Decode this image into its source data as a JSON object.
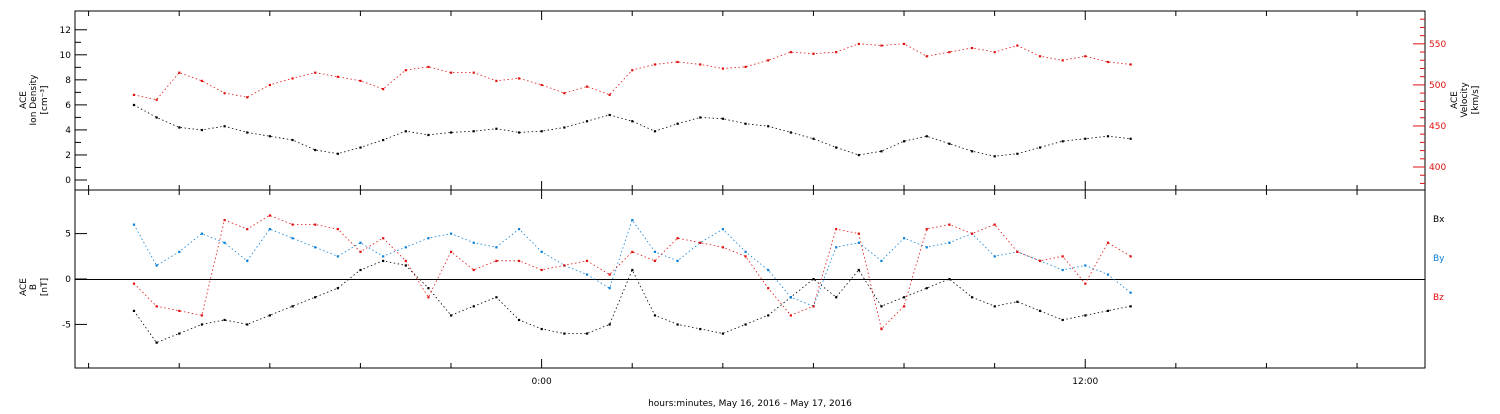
{
  "chart_data": [
    {
      "type": "scatter",
      "ylabel_left": [
        "ACE",
        "Ion Density",
        "[cm⁻³]"
      ],
      "ylabel_right": [
        "ACE",
        "Velocity",
        "[km/s]"
      ],
      "y_left_ticks": [
        "0",
        "2",
        "4",
        "6",
        "8",
        "10",
        "12"
      ],
      "y_right_ticks": [
        "400",
        "450",
        "500",
        "550"
      ],
      "ylim_left": [
        -0.8,
        13.5
      ],
      "ylim_right": [
        372,
        590
      ],
      "series": [
        {
          "name": "",
          "axis": "left",
          "color": "#000000",
          "x": [
            -9.0,
            -8.5,
            -8.0,
            -7.5,
            -7.0,
            -6.5,
            -6.0,
            -5.5,
            -5.0,
            -4.5,
            -4.0,
            -3.5,
            -3.0,
            -2.5,
            -2.0,
            -1.5,
            -1.0,
            -0.5,
            0.0,
            0.5,
            1.0,
            1.5,
            2.0,
            2.5,
            3.0,
            3.5,
            4.0,
            4.5,
            5.0,
            5.5,
            6.0,
            6.5,
            7.0,
            7.5,
            8.0,
            8.5,
            9.0,
            9.5,
            10.0,
            10.5,
            11.0,
            11.5,
            12.0,
            12.5,
            13.0
          ],
          "y": [
            6.0,
            5.0,
            4.2,
            4.0,
            4.3,
            3.8,
            3.5,
            3.2,
            2.4,
            2.1,
            2.6,
            3.2,
            3.9,
            3.6,
            3.8,
            3.9,
            4.1,
            3.8,
            3.9,
            4.2,
            4.7,
            5.2,
            4.7,
            3.9,
            4.5,
            5.0,
            4.9,
            4.5,
            4.3,
            3.8,
            3.3,
            2.6,
            2.0,
            2.3,
            3.1,
            3.5,
            2.9,
            2.3,
            1.9,
            2.1,
            2.6,
            3.1,
            3.3,
            3.5,
            3.3
          ]
        },
        {
          "name": "",
          "axis": "right",
          "color": "#e0100f",
          "x": [
            -9.0,
            -8.5,
            -8.0,
            -7.5,
            -7.0,
            -6.5,
            -6.0,
            -5.5,
            -5.0,
            -4.5,
            -4.0,
            -3.5,
            -3.0,
            -2.5,
            -2.0,
            -1.5,
            -1.0,
            -0.5,
            0.0,
            0.5,
            1.0,
            1.5,
            2.0,
            2.5,
            3.0,
            3.5,
            4.0,
            4.5,
            5.0,
            5.5,
            6.0,
            6.5,
            7.0,
            7.5,
            8.0,
            8.5,
            9.0,
            9.5,
            10.0,
            10.5,
            11.0,
            11.5,
            12.0,
            12.5,
            13.0
          ],
          "y": [
            488,
            482,
            515,
            505,
            490,
            485,
            500,
            508,
            515,
            510,
            505,
            495,
            518,
            522,
            515,
            515,
            505,
            508,
            500,
            490,
            498,
            488,
            518,
            525,
            528,
            525,
            520,
            522,
            530,
            540,
            538,
            540,
            550,
            548,
            550,
            535,
            540,
            545,
            540,
            548,
            535,
            530,
            535,
            528,
            525
          ]
        }
      ]
    },
    {
      "type": "scatter",
      "ylabel_left": [
        "ACE",
        "B",
        "[nT]"
      ],
      "y_left_ticks": [
        "-5",
        "0",
        "5"
      ],
      "ylim_left": [
        -9.8,
        9.8
      ],
      "baseline": 0,
      "xlabel": "hours:minutes, May 16, 2016 – May 17, 2016",
      "x_tick_labels": [
        "0:00",
        "12:00"
      ],
      "xlim": [
        -10.3,
        19.5
      ],
      "series": [
        {
          "name": "Bx",
          "color": "#000000",
          "x": [
            -9.0,
            -8.5,
            -8.0,
            -7.5,
            -7.0,
            -6.5,
            -6.0,
            -5.5,
            -5.0,
            -4.5,
            -4.0,
            -3.5,
            -3.0,
            -2.5,
            -2.0,
            -1.5,
            -1.0,
            -0.5,
            0.0,
            0.5,
            1.0,
            1.5,
            2.0,
            2.5,
            3.0,
            3.5,
            4.0,
            4.5,
            5.0,
            5.5,
            6.0,
            6.5,
            7.0,
            7.5,
            8.0,
            8.5,
            9.0,
            9.5,
            10.0,
            10.5,
            11.0,
            11.5,
            12.0,
            12.5,
            13.0
          ],
          "y": [
            -3.5,
            -7.0,
            -6.0,
            -5.0,
            -4.5,
            -5.0,
            -4.0,
            -3.0,
            -2.0,
            -1.0,
            1.0,
            2.0,
            1.5,
            -1.0,
            -4.0,
            -3.0,
            -2.0,
            -4.5,
            -5.5,
            -6.0,
            -6.0,
            -5.0,
            1.0,
            -4.0,
            -5.0,
            -5.5,
            -6.0,
            -5.0,
            -4.0,
            -2.0,
            0.0,
            -2.0,
            1.0,
            -3.0,
            -2.0,
            -1.0,
            0.0,
            -2.0,
            -3.0,
            -2.5,
            -3.5,
            -4.5,
            -4.0,
            -3.5,
            -3.0
          ]
        },
        {
          "name": "By",
          "color": "#0a7fd6",
          "x": [
            -9.0,
            -8.5,
            -8.0,
            -7.5,
            -7.0,
            -6.5,
            -6.0,
            -5.5,
            -5.0,
            -4.5,
            -4.0,
            -3.5,
            -3.0,
            -2.5,
            -2.0,
            -1.5,
            -1.0,
            -0.5,
            0.0,
            0.5,
            1.0,
            1.5,
            2.0,
            2.5,
            3.0,
            3.5,
            4.0,
            4.5,
            5.0,
            5.5,
            6.0,
            6.5,
            7.0,
            7.5,
            8.0,
            8.5,
            9.0,
            9.5,
            10.0,
            10.5,
            11.0,
            11.5,
            12.0,
            12.5,
            13.0
          ],
          "y": [
            6.0,
            1.5,
            3.0,
            5.0,
            4.0,
            2.0,
            5.5,
            4.5,
            3.5,
            2.5,
            4.0,
            2.5,
            3.5,
            4.5,
            5.0,
            4.0,
            3.5,
            5.5,
            3.0,
            1.5,
            0.5,
            -1.0,
            6.5,
            3.0,
            2.0,
            4.0,
            5.5,
            3.0,
            1.0,
            -2.0,
            -3.0,
            3.5,
            4.0,
            2.0,
            4.5,
            3.5,
            4.0,
            5.0,
            2.5,
            3.0,
            2.0,
            1.0,
            1.5,
            0.5,
            -1.5
          ]
        },
        {
          "name": "Bz",
          "color": "#e0100f",
          "x": [
            -9.0,
            -8.5,
            -8.0,
            -7.5,
            -7.0,
            -6.5,
            -6.0,
            -5.5,
            -5.0,
            -4.5,
            -4.0,
            -3.5,
            -3.0,
            -2.5,
            -2.0,
            -1.5,
            -1.0,
            -0.5,
            0.0,
            0.5,
            1.0,
            1.5,
            2.0,
            2.5,
            3.0,
            3.5,
            4.0,
            4.5,
            5.0,
            5.5,
            6.0,
            6.5,
            7.0,
            7.5,
            8.0,
            8.5,
            9.0,
            9.5,
            10.0,
            10.5,
            11.0,
            11.5,
            12.0,
            12.5,
            13.0
          ],
          "y": [
            -0.5,
            -3.0,
            -3.5,
            -4.0,
            6.5,
            5.5,
            7.0,
            6.0,
            6.0,
            5.5,
            3.0,
            4.5,
            2.0,
            -2.0,
            3.0,
            1.0,
            2.0,
            2.0,
            1.0,
            1.5,
            2.0,
            0.5,
            3.0,
            2.0,
            4.5,
            4.0,
            3.5,
            2.5,
            -1.0,
            -4.0,
            -3.0,
            5.5,
            5.0,
            -5.5,
            -3.0,
            5.5,
            6.0,
            5.0,
            6.0,
            3.0,
            2.0,
            2.5,
            -0.5,
            4.0,
            2.5
          ]
        }
      ]
    }
  ]
}
